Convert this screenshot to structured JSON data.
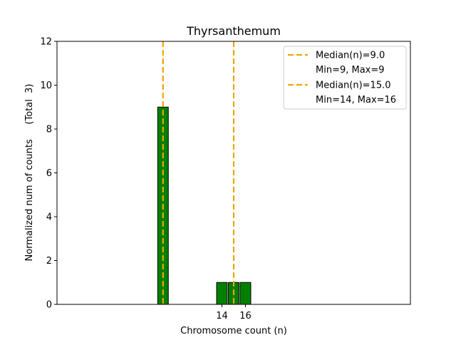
{
  "chart_data": {
    "type": "bar",
    "title": "Thyrsanthemum",
    "xlabel": "Chromosome count (n)",
    "ylabel": "Normalized num of counts     (Total  3)",
    "xlim": [
      0,
      30
    ],
    "ylim": [
      0,
      12
    ],
    "yticks": [
      0,
      2,
      4,
      6,
      8,
      10,
      12
    ],
    "xticks": [
      14,
      16
    ],
    "bar_width": 0.9,
    "bars": [
      {
        "x": 9,
        "value": 9
      },
      {
        "x": 14,
        "value": 1
      },
      {
        "x": 15,
        "value": 1
      },
      {
        "x": 16,
        "value": 1
      }
    ],
    "baseline_segments": [
      [
        0,
        12.7
      ]
    ],
    "median_lines": [
      {
        "x": 9.0,
        "label": "Median(n)=9.0",
        "range_label": "Min=9, Max=9"
      },
      {
        "x": 15.0,
        "label": "Median(n)=15.0",
        "range_label": "Min=14, Max=16"
      }
    ],
    "legend_position": "top-right",
    "colors": {
      "bar": "#008000",
      "bar_edge": "#000000",
      "median": "#f0a500"
    }
  }
}
